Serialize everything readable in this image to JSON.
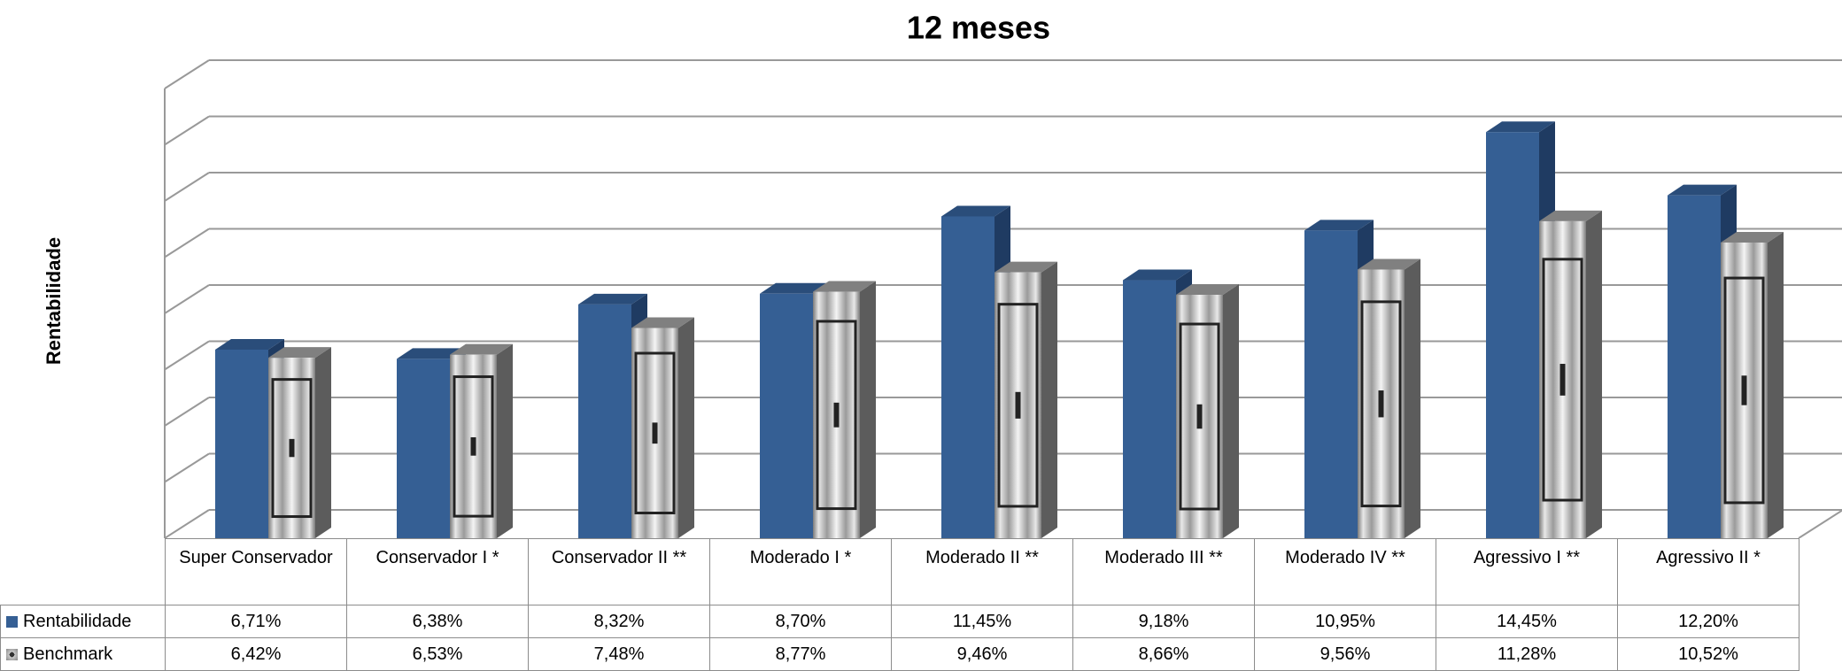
{
  "chart_data": {
    "type": "bar3d",
    "title": "12 meses",
    "y_label": "Rentabilidade",
    "categories": [
      "Super Conservador",
      "Conservador I *",
      "Conservador II **",
      "Moderado I *",
      "Moderado II **",
      "Moderado III **",
      "Moderado IV **",
      "Agressivo I **",
      "Agressivo II *"
    ],
    "series": [
      {
        "name": "Rentabilidade",
        "color": "#355f94",
        "values": [
          6.71,
          6.38,
          8.32,
          8.7,
          11.45,
          9.18,
          10.95,
          14.45,
          12.2
        ],
        "value_labels": [
          "6,71%",
          "6,38%",
          "8,32%",
          "8,70%",
          "11,45%",
          "9,18%",
          "10,95%",
          "14,45%",
          "12,20%"
        ]
      },
      {
        "name": "Benchmark",
        "color": "#a6a6a6",
        "values": [
          6.42,
          6.53,
          7.48,
          8.77,
          9.46,
          8.66,
          9.56,
          11.28,
          10.52
        ],
        "value_labels": [
          "6,42%",
          "6,53%",
          "7,48%",
          "8,77%",
          "9,46%",
          "8,66%",
          "9,56%",
          "11,28%",
          "10,52%"
        ]
      }
    ],
    "ylim": [
      0,
      16
    ],
    "yticks": [
      0,
      2,
      4,
      6,
      8,
      10,
      12,
      14,
      16
    ],
    "grid": true
  }
}
